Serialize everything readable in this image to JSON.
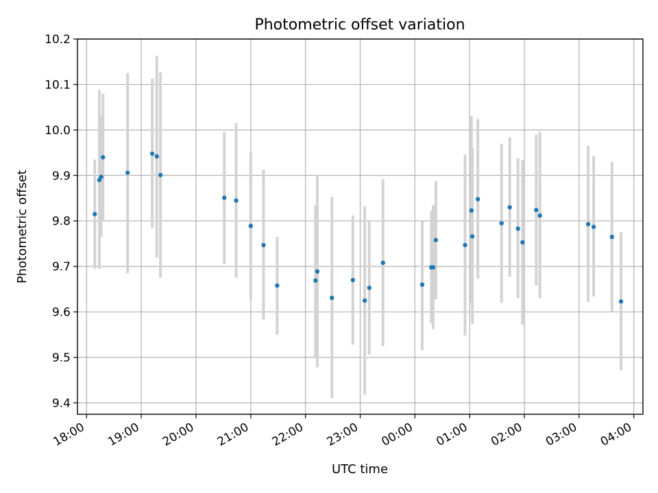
{
  "chart_data": {
    "type": "scatter",
    "title": "Photometric offset variation",
    "xlabel": "UTC time",
    "ylabel": "Photometric offset",
    "xlim": [
      "17:50",
      "04:10"
    ],
    "ylim": [
      9.375,
      10.2
    ],
    "x_ticks": [
      "18:00",
      "19:00",
      "20:00",
      "21:00",
      "22:00",
      "23:00",
      "00:00",
      "01:00",
      "02:00",
      "03:00",
      "04:00"
    ],
    "y_ticks": [
      "9.4",
      "9.5",
      "9.6",
      "9.7",
      "9.8",
      "9.9",
      "10.0",
      "10.1",
      "10.2"
    ],
    "grid": true,
    "colors": {
      "points": "#1f77b4",
      "errorbars": "#d3d3d3"
    },
    "points": [
      {
        "x": "18:09",
        "y": 9.815,
        "err_low": 9.695,
        "err_high": 9.935
      },
      {
        "x": "18:14",
        "y": 9.89,
        "err_low": 9.695,
        "err_high": 10.088
      },
      {
        "x": "18:16",
        "y": 9.897,
        "err_low": 9.765,
        "err_high": 10.03
      },
      {
        "x": "18:18",
        "y": 9.94,
        "err_low": 9.8,
        "err_high": 10.08
      },
      {
        "x": "18:45",
        "y": 9.906,
        "err_low": 9.685,
        "err_high": 10.125
      },
      {
        "x": "19:12",
        "y": 9.948,
        "err_low": 9.785,
        "err_high": 10.113
      },
      {
        "x": "19:17",
        "y": 9.942,
        "err_low": 9.72,
        "err_high": 10.163
      },
      {
        "x": "19:21",
        "y": 9.901,
        "err_low": 9.675,
        "err_high": 10.127
      },
      {
        "x": "20:31",
        "y": 9.851,
        "err_low": 9.705,
        "err_high": 9.995
      },
      {
        "x": "20:44",
        "y": 9.845,
        "err_low": 9.675,
        "err_high": 10.015
      },
      {
        "x": "21:00",
        "y": 9.789,
        "err_low": 9.628,
        "err_high": 9.95
      },
      {
        "x": "21:14",
        "y": 9.747,
        "err_low": 9.583,
        "err_high": 9.912
      },
      {
        "x": "21:29",
        "y": 9.658,
        "err_low": 9.55,
        "err_high": 9.765
      },
      {
        "x": "22:11",
        "y": 9.669,
        "err_low": 9.5,
        "err_high": 9.835
      },
      {
        "x": "22:13",
        "y": 9.689,
        "err_low": 9.478,
        "err_high": 9.9
      },
      {
        "x": "22:29",
        "y": 9.631,
        "err_low": 9.41,
        "err_high": 9.853
      },
      {
        "x": "22:52",
        "y": 9.67,
        "err_low": 9.528,
        "err_high": 9.812
      },
      {
        "x": "23:05",
        "y": 9.625,
        "err_low": 9.418,
        "err_high": 9.832
      },
      {
        "x": "23:10",
        "y": 9.653,
        "err_low": 9.506,
        "err_high": 9.8
      },
      {
        "x": "23:25",
        "y": 9.708,
        "err_low": 9.525,
        "err_high": 9.892
      },
      {
        "x": "00:08",
        "y": 9.66,
        "err_low": 9.516,
        "err_high": 9.8
      },
      {
        "x": "00:18",
        "y": 9.698,
        "err_low": 9.575,
        "err_high": 9.822
      },
      {
        "x": "00:20",
        "y": 9.698,
        "err_low": 9.562,
        "err_high": 9.835
      },
      {
        "x": "00:23",
        "y": 9.758,
        "err_low": 9.628,
        "err_high": 9.888
      },
      {
        "x": "00:55",
        "y": 9.747,
        "err_low": 9.548,
        "err_high": 9.946
      },
      {
        "x": "01:02",
        "y": 9.823,
        "err_low": 9.62,
        "err_high": 10.03
      },
      {
        "x": "01:03",
        "y": 9.766,
        "err_low": 9.573,
        "err_high": 9.96
      },
      {
        "x": "01:09",
        "y": 9.848,
        "err_low": 9.673,
        "err_high": 10.024
      },
      {
        "x": "01:35",
        "y": 9.795,
        "err_low": 9.62,
        "err_high": 9.97
      },
      {
        "x": "01:44",
        "y": 9.83,
        "err_low": 9.677,
        "err_high": 9.984
      },
      {
        "x": "01:53",
        "y": 9.783,
        "err_low": 9.63,
        "err_high": 9.938
      },
      {
        "x": "01:58",
        "y": 9.753,
        "err_low": 9.572,
        "err_high": 9.934
      },
      {
        "x": "02:13",
        "y": 9.824,
        "err_low": 9.658,
        "err_high": 9.99
      },
      {
        "x": "02:17",
        "y": 9.812,
        "err_low": 9.63,
        "err_high": 9.996
      },
      {
        "x": "03:10",
        "y": 9.793,
        "err_low": 9.622,
        "err_high": 9.965
      },
      {
        "x": "03:16",
        "y": 9.787,
        "err_low": 9.634,
        "err_high": 9.943
      },
      {
        "x": "03:36",
        "y": 9.765,
        "err_low": 9.6,
        "err_high": 9.93
      },
      {
        "x": "03:46",
        "y": 9.623,
        "err_low": 9.472,
        "err_high": 9.775
      }
    ]
  }
}
